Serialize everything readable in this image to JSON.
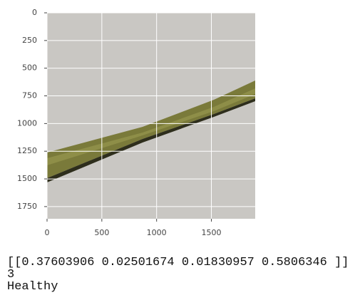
{
  "plot": {
    "xlim": [
      0,
      1900
    ],
    "ylim": [
      1860,
      0
    ],
    "xticks": [
      0,
      500,
      1000,
      1500
    ],
    "yticks": [
      0,
      250,
      500,
      750,
      1000,
      1250,
      1500,
      1750
    ],
    "grid": true
  },
  "output": {
    "lines": [
      "[[0.37603906 0.02501674 0.01830957 0.5806346 ]]",
      "3",
      "Healthy"
    ]
  }
}
